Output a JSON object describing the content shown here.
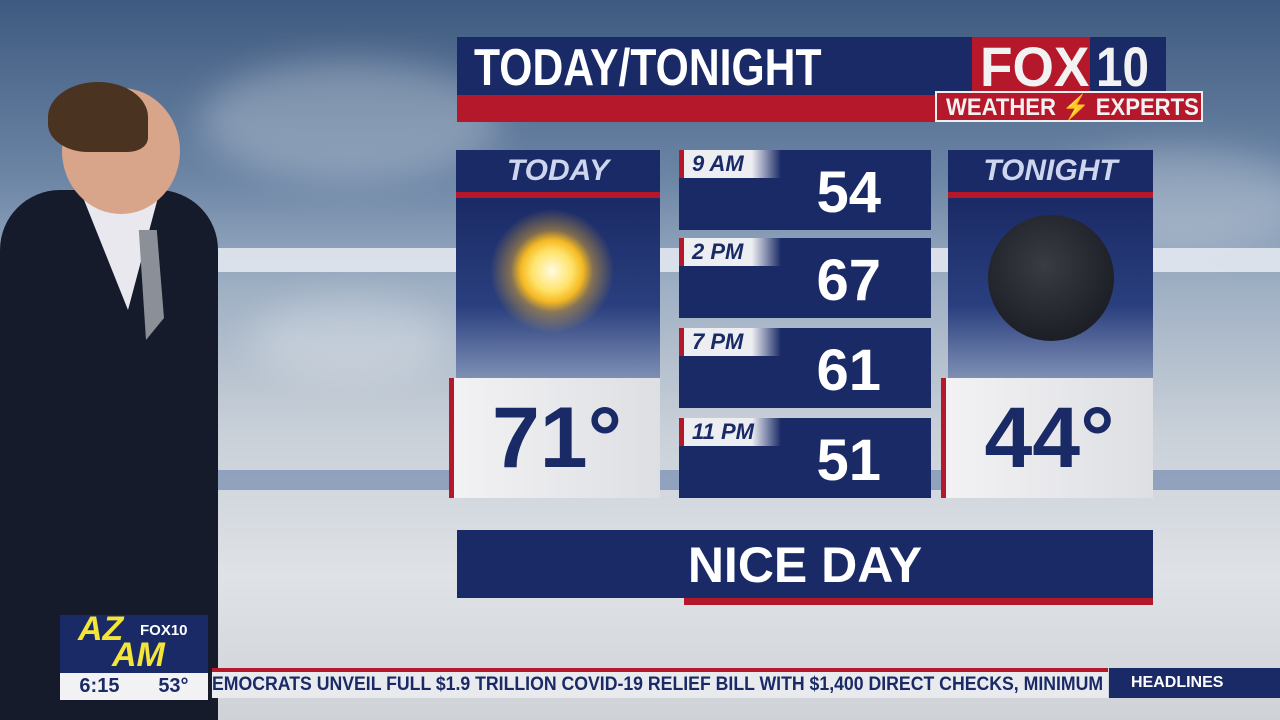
{
  "header": {
    "title": "TODAY/TONIGHT",
    "logo": {
      "brand": "FOX",
      "number": "10",
      "tagline": "WEATHER",
      "tagline2": "EXPERTS"
    }
  },
  "today": {
    "label": "TODAY",
    "icon": "sun-icon",
    "temp": "71°"
  },
  "tonight": {
    "label": "TONIGHT",
    "icon": "moon-icon",
    "temp": "44°"
  },
  "hourly": [
    {
      "time": "9 AM",
      "temp": "54"
    },
    {
      "time": "2 PM",
      "temp": "67"
    },
    {
      "time": "7 PM",
      "temp": "61"
    },
    {
      "time": "11 PM",
      "temp": "51"
    }
  ],
  "summary": "NICE DAY",
  "show": {
    "logo_az": "AZ",
    "logo_am": "AM",
    "logo_fox": "FOX10",
    "time": "6:15",
    "temp": "53°"
  },
  "ticker": {
    "text": "EMOCRATS UNVEIL FULL $1.9 TRILLION COVID-19 RELIEF BILL WITH $1,400 DIRECT CHECKS, MINIMUM",
    "section": "HEADLINES"
  },
  "colors": {
    "navy": "#1a2a66",
    "red": "#b5182a"
  }
}
